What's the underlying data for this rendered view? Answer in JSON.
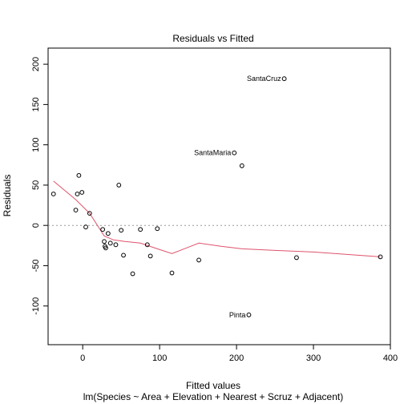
{
  "chart_data": {
    "type": "scatter",
    "title": "Residuals vs Fitted",
    "xlabel": "Fitted values",
    "xlabel_sub": "lm(Species ~ Area + Elevation + Nearest + Scruz + Adjacent)",
    "ylabel": "Residuals",
    "xlim": [
      -45,
      400
    ],
    "ylim": [
      -148,
      220
    ],
    "xticks": [
      0,
      100,
      200,
      300,
      400
    ],
    "yticks": [
      -100,
      -50,
      0,
      50,
      100,
      150,
      200
    ],
    "reference_line": 0,
    "grid": false,
    "points": [
      {
        "x": -38,
        "y": 39
      },
      {
        "x": -9,
        "y": 19
      },
      {
        "x": -7,
        "y": 39
      },
      {
        "x": -5,
        "y": 62
      },
      {
        "x": -1,
        "y": 41
      },
      {
        "x": 4,
        "y": -2
      },
      {
        "x": 9,
        "y": 15
      },
      {
        "x": 26,
        "y": -5
      },
      {
        "x": 28,
        "y": -20
      },
      {
        "x": 29,
        "y": -26
      },
      {
        "x": 30,
        "y": -28
      },
      {
        "x": 33,
        "y": -10
      },
      {
        "x": 36,
        "y": -22
      },
      {
        "x": 43,
        "y": -24
      },
      {
        "x": 47,
        "y": 50
      },
      {
        "x": 50,
        "y": -6
      },
      {
        "x": 53,
        "y": -37
      },
      {
        "x": 65,
        "y": -60
      },
      {
        "x": 75,
        "y": -5
      },
      {
        "x": 84,
        "y": -24
      },
      {
        "x": 88,
        "y": -38
      },
      {
        "x": 97,
        "y": -4
      },
      {
        "x": 116,
        "y": -59
      },
      {
        "x": 151,
        "y": -43
      },
      {
        "x": 197,
        "y": 90,
        "label": "SantaMaria"
      },
      {
        "x": 207,
        "y": 74
      },
      {
        "x": 216,
        "y": -111,
        "label": "Pinta"
      },
      {
        "x": 262,
        "y": 182,
        "label": "SantaCruz"
      },
      {
        "x": 278,
        "y": -40
      },
      {
        "x": 387,
        "y": -39
      }
    ],
    "smooth_line": {
      "color": "#DF536B",
      "points": [
        {
          "x": -38,
          "y": 55
        },
        {
          "x": -9,
          "y": 32
        },
        {
          "x": 9,
          "y": 15
        },
        {
          "x": 28,
          "y": -13
        },
        {
          "x": 40,
          "y": -18
        },
        {
          "x": 55,
          "y": -20
        },
        {
          "x": 75,
          "y": -22
        },
        {
          "x": 97,
          "y": -29
        },
        {
          "x": 116,
          "y": -35
        },
        {
          "x": 135,
          "y": -28
        },
        {
          "x": 151,
          "y": -22
        },
        {
          "x": 180,
          "y": -26
        },
        {
          "x": 207,
          "y": -29
        },
        {
          "x": 250,
          "y": -31
        },
        {
          "x": 300,
          "y": -33
        },
        {
          "x": 387,
          "y": -39
        }
      ]
    }
  }
}
